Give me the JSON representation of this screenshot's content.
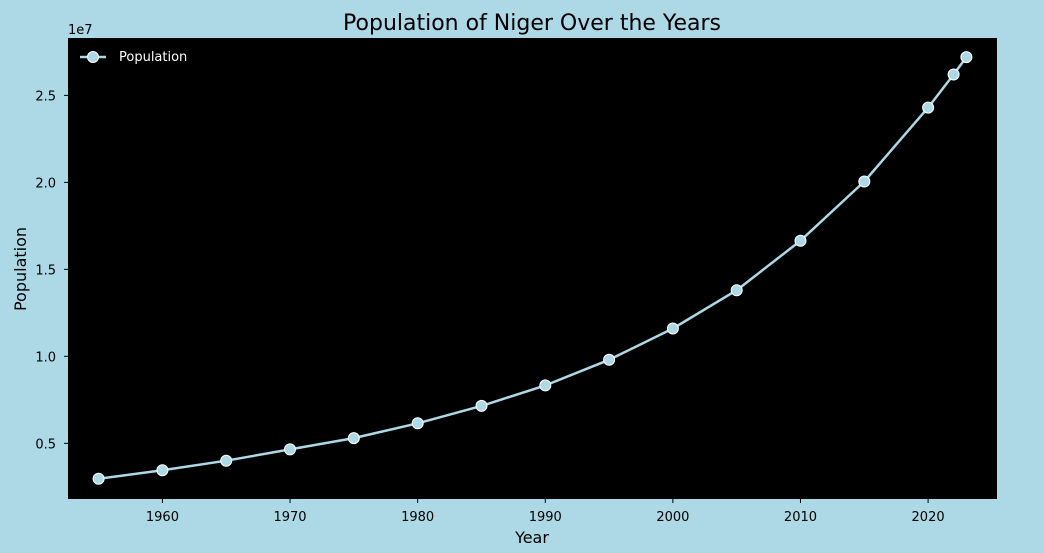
{
  "chart_data": {
    "type": "line",
    "title": "Population of Niger Over the Years",
    "xlabel": "Year",
    "ylabel": "Population",
    "y_offset_label": "1e7",
    "y_scale": 10000000,
    "xlim": [
      1952.6,
      2025.4
    ],
    "ylim": [
      1800000,
      28300000
    ],
    "x_ticks": [
      1960,
      1970,
      1980,
      1990,
      2000,
      2010,
      2020
    ],
    "x_tick_labels": [
      "1960",
      "1970",
      "1980",
      "1990",
      "2000",
      "2010",
      "2020"
    ],
    "y_ticks": [
      5000000,
      10000000,
      15000000,
      20000000,
      25000000
    ],
    "y_tick_labels": [
      "0.5",
      "1.0",
      "1.5",
      "2.0",
      "2.5"
    ],
    "grid": false,
    "legend_position": "top-left",
    "series": [
      {
        "name": "Population",
        "color": "#add8e6",
        "x": [
          1955,
          1960,
          1965,
          1970,
          1975,
          1980,
          1985,
          1990,
          1995,
          2000,
          2005,
          2010,
          2015,
          2020,
          2022,
          2023
        ],
        "values": [
          2960000,
          3450000,
          4000000,
          4650000,
          5300000,
          6150000,
          7150000,
          8330000,
          9800000,
          11600000,
          13800000,
          16650000,
          20050000,
          24300000,
          26200000,
          27200000
        ]
      }
    ]
  },
  "colors": {
    "figure_background": "#add8e6",
    "plot_background": "#000000",
    "line": "#add8e6",
    "marker_edge": "#ffffff"
  }
}
